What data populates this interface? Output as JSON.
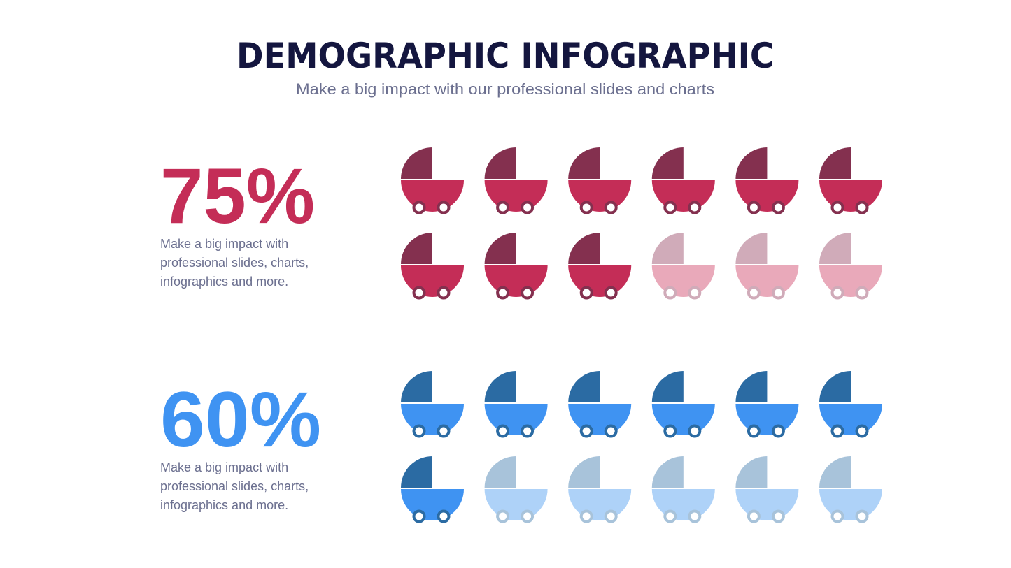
{
  "header": {
    "title": "DEMOGRAPHIC INFOGRAPHIC",
    "subtitle": "Make a big impact with our professional slides and charts"
  },
  "sections": [
    {
      "percent": "75%",
      "description": [
        "Make a big impact with",
        "professional slides, charts,",
        "infographics and more."
      ],
      "icons_total": 12,
      "icons_filled": 9,
      "colors": {
        "accent": "#c42d57",
        "dark": "#84304f",
        "faded_dark": "#d0abb9",
        "faded_light": "#e9a9ba"
      }
    },
    {
      "percent": "60%",
      "description": [
        "Make a big impact with",
        "professional slides, charts,",
        "infographics and more."
      ],
      "icons_total": 12,
      "icons_filled": 7,
      "colors": {
        "accent": "#3f93f2",
        "dark": "#2b6ba3",
        "faded_dark": "#a8c3da",
        "faded_light": "#aed2f8"
      }
    }
  ]
}
